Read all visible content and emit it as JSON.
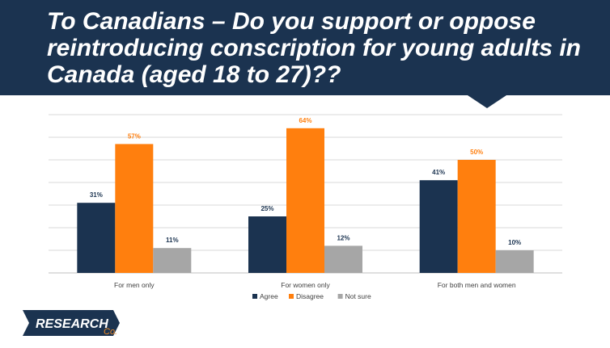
{
  "header": {
    "title": "To Canadians – Do you support or oppose reintroducing conscription for young adults in Canada (aged 18 to 27)??"
  },
  "logo": {
    "text": "RESEARCH",
    "sub": "Co."
  },
  "colors": {
    "banner": "#1b3350",
    "agree": "#1b3350",
    "disagree": "#ff7f0e",
    "not_sure": "#a6a6a6"
  },
  "chart_data": {
    "type": "bar",
    "categories": [
      "For men only",
      "For women only",
      "For both men and women"
    ],
    "series": [
      {
        "name": "Agree",
        "values": [
          31,
          25,
          41
        ],
        "labels": [
          "31%",
          "25%",
          "41%"
        ],
        "color": "#1b3350"
      },
      {
        "name": "Disagree",
        "values": [
          57,
          64,
          50
        ],
        "labels": [
          "57%",
          "64%",
          "50%"
        ],
        "color": "#ff7f0e"
      },
      {
        "name": "Not sure",
        "values": [
          11,
          12,
          10
        ],
        "labels": [
          "11%",
          "12%",
          "10%"
        ],
        "color": "#a6a6a6"
      }
    ],
    "ylim": [
      0,
      70
    ],
    "grid": true,
    "legend": "bottom"
  }
}
